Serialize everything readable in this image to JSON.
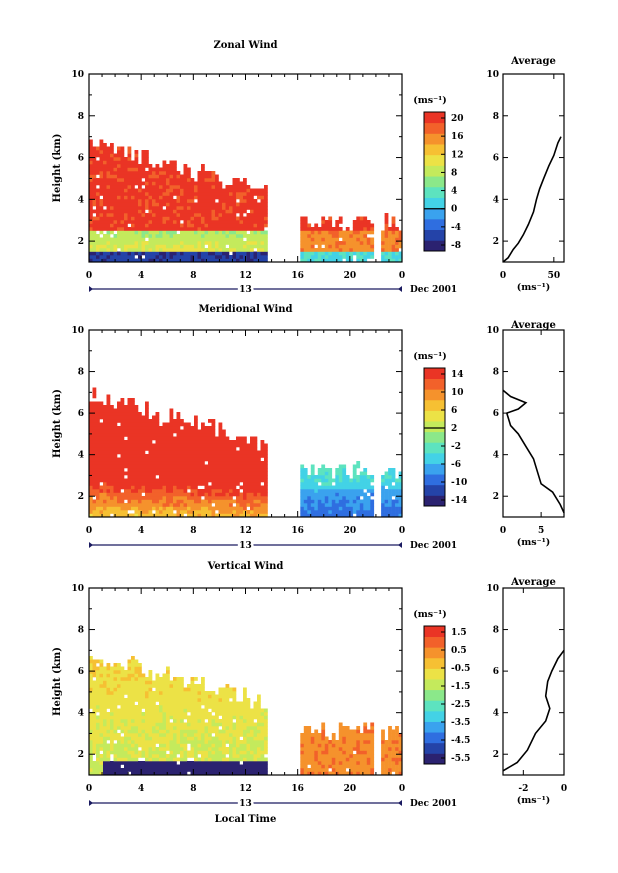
{
  "chart_data": [
    {
      "type": "heatmap",
      "title": "Zonal Wind",
      "ylabel": "Height (km)",
      "ylim": [
        1,
        10
      ],
      "yticks": [
        "2",
        "4",
        "6",
        "8",
        "10"
      ],
      "xlim": [
        0,
        24
      ],
      "xticks": [
        "0",
        "4",
        "8",
        "12",
        "16",
        "20",
        "0"
      ],
      "day_label": "13",
      "date_label": "Dec 2001",
      "colorbar": {
        "unit": "(ms⁻¹)",
        "ticks": [
          "20",
          "16",
          "12",
          "8",
          "4",
          "0",
          "-4",
          "-8"
        ],
        "range": [
          -10,
          22
        ]
      },
      "average": {
        "title": "Average",
        "unit": "(ms⁻¹)",
        "xticks": [
          "0",
          "50"
        ],
        "xlim": [
          0,
          60
        ],
        "yticks": [
          "2",
          "4",
          "6",
          "8",
          "10"
        ],
        "ylim": [
          1,
          10
        ],
        "profile": [
          [
            0,
            1
          ],
          [
            5,
            1.2
          ],
          [
            10,
            1.6
          ],
          [
            15,
            1.9
          ],
          [
            20,
            2.3
          ],
          [
            25,
            2.8
          ],
          [
            30,
            3.4
          ],
          [
            33,
            4
          ],
          [
            36,
            4.5
          ],
          [
            40,
            5
          ],
          [
            45,
            5.6
          ],
          [
            50,
            6.1
          ],
          [
            54,
            6.7
          ],
          [
            57,
            7
          ]
        ]
      },
      "fields": [
        {
          "start": 0,
          "end": 13.5,
          "base": 12,
          "hgrad": -3,
          "dt": -0.1,
          "top_start": 6.8,
          "top_end": 4.5
        },
        {
          "start": 16.2,
          "end": 21.8,
          "base": 16,
          "hgrad": 0.5,
          "dt": 0,
          "top_start": 3.0,
          "top_end": 3.0
        },
        {
          "start": 22.4,
          "end": 24,
          "base": 16,
          "hgrad": 0.5,
          "dt": 0,
          "top_start": 3.0,
          "top_end": 3.0
        }
      ]
    },
    {
      "type": "heatmap",
      "title": "Meridional Wind",
      "ylabel": "Height (km)",
      "ylim": [
        1,
        10
      ],
      "yticks": [
        "2",
        "4",
        "6",
        "8",
        "10"
      ],
      "xlim": [
        0,
        24
      ],
      "xticks": [
        "0",
        "4",
        "8",
        "12",
        "16",
        "20",
        "0"
      ],
      "day_label": "13",
      "date_label": "Dec 2001",
      "colorbar": {
        "unit": "(ms⁻¹)",
        "ticks": [
          "14",
          "10",
          "6",
          "2",
          "-2",
          "-6",
          "-10",
          "-14"
        ],
        "range": [
          -16,
          16
        ]
      },
      "average": {
        "title": "Average",
        "unit": "(ms⁻¹)",
        "xticks": [
          "0",
          "5"
        ],
        "xlim": [
          0,
          8
        ],
        "yticks": [
          "2",
          "4",
          "6",
          "8",
          "10"
        ],
        "ylim": [
          1,
          10
        ],
        "profile": [
          [
            8,
            1.2
          ],
          [
            7.5,
            1.6
          ],
          [
            6.5,
            2.2
          ],
          [
            5,
            2.6
          ],
          [
            4.5,
            3.2
          ],
          [
            4,
            3.8
          ],
          [
            3,
            4.4
          ],
          [
            2,
            5
          ],
          [
            1,
            5.4
          ],
          [
            0.5,
            6
          ],
          [
            2,
            6.2
          ],
          [
            3,
            6.5
          ],
          [
            1,
            6.8
          ],
          [
            0,
            7.1
          ]
        ]
      },
      "fields": [
        {
          "start": 0,
          "end": 13.5,
          "base": 6,
          "hgrad": 5,
          "dt": 1.2,
          "top_start": 7.0,
          "top_end": 4.6
        },
        {
          "start": 16.2,
          "end": 21.8,
          "base": -8,
          "hgrad": 2,
          "dt": 0,
          "top_start": 3.4,
          "top_end": 3.4
        },
        {
          "start": 22.4,
          "end": 24,
          "base": -8,
          "hgrad": 2,
          "dt": 0,
          "top_start": 3.4,
          "top_end": 3.4
        }
      ]
    },
    {
      "type": "heatmap",
      "title": "Vertical Wind",
      "ylabel": "Height (km)",
      "xlabel": "Local Time",
      "ylim": [
        1,
        10
      ],
      "yticks": [
        "2",
        "4",
        "6",
        "8",
        "10"
      ],
      "xlim": [
        0,
        24
      ],
      "xticks": [
        "0",
        "4",
        "8",
        "12",
        "16",
        "20",
        "0"
      ],
      "day_label": "13",
      "date_label": "Dec 2001",
      "colorbar": {
        "unit": "(ms⁻¹)",
        "ticks": [
          "1.5",
          "0.5",
          "-0.5",
          "-1.5",
          "-2.5",
          "-3.5",
          "-4.5",
          "-5.5"
        ],
        "range": [
          -6,
          2
        ]
      },
      "average": {
        "title": "Average",
        "unit": "(ms⁻¹)",
        "xticks": [
          "-2",
          "0"
        ],
        "xlim": [
          -3,
          0
        ],
        "yticks": [
          "2",
          "4",
          "6",
          "8",
          "10"
        ],
        "ylim": [
          1,
          10
        ],
        "profile": [
          [
            -3,
            1.2
          ],
          [
            -2.3,
            1.6
          ],
          [
            -1.8,
            2.2
          ],
          [
            -1.4,
            3
          ],
          [
            -0.9,
            3.6
          ],
          [
            -0.7,
            4.2
          ],
          [
            -0.9,
            4.8
          ],
          [
            -0.8,
            5.5
          ],
          [
            -0.6,
            6
          ],
          [
            -0.3,
            6.6
          ],
          [
            0,
            7
          ]
        ]
      },
      "fields": [
        {
          "start": 0,
          "end": 13.5,
          "base": -1.3,
          "hgrad": 0.15,
          "dt": 0,
          "top_start": 7.0,
          "top_end": 4.5
        },
        {
          "start": 16.2,
          "end": 21.8,
          "base": 0.6,
          "hgrad": 0,
          "dt": 0,
          "top_start": 3.2,
          "top_end": 3.2
        },
        {
          "start": 22.4,
          "end": 24,
          "base": 0.6,
          "hgrad": 0,
          "dt": 0,
          "top_start": 3.0,
          "top_end": 3.0
        }
      ]
    }
  ]
}
